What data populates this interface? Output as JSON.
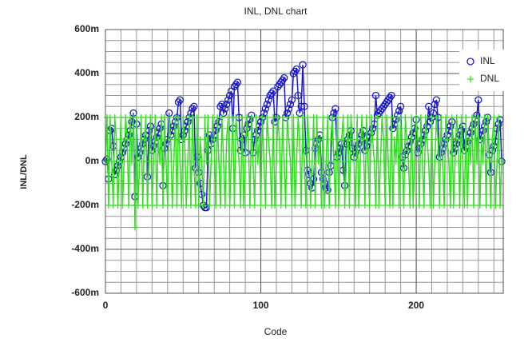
{
  "chart_data": {
    "type": "line",
    "title": "INL, DNL chart",
    "x_label": "Code",
    "y_label": "INL/DNL",
    "x": [
      0,
      1,
      2,
      3,
      4,
      5,
      6,
      7,
      8,
      9,
      10,
      11,
      12,
      13,
      14,
      15,
      16,
      17,
      18,
      19,
      20,
      21,
      22,
      23,
      24,
      25,
      26,
      27,
      28,
      29,
      30,
      31,
      32,
      33,
      34,
      35,
      36,
      37,
      38,
      39,
      40,
      41,
      42,
      43,
      44,
      45,
      46,
      47,
      48,
      49,
      50,
      51,
      52,
      53,
      54,
      55,
      56,
      57,
      58,
      59,
      60,
      61,
      62,
      63,
      64,
      65,
      66,
      67,
      68,
      69,
      70,
      71,
      72,
      73,
      74,
      75,
      76,
      77,
      78,
      79,
      80,
      81,
      82,
      83,
      84,
      85,
      86,
      87,
      88,
      89,
      90,
      91,
      92,
      93,
      94,
      95,
      96,
      97,
      98,
      99,
      100,
      101,
      102,
      103,
      104,
      105,
      106,
      107,
      108,
      109,
      110,
      111,
      112,
      113,
      114,
      115,
      116,
      117,
      118,
      119,
      120,
      121,
      122,
      123,
      124,
      125,
      126,
      127,
      128,
      129,
      130,
      131,
      132,
      133,
      134,
      135,
      136,
      137,
      138,
      139,
      140,
      141,
      142,
      143,
      144,
      145,
      146,
      147,
      148,
      149,
      150,
      151,
      152,
      153,
      154,
      155,
      156,
      157,
      158,
      159,
      160,
      161,
      162,
      163,
      164,
      165,
      166,
      167,
      168,
      169,
      170,
      171,
      172,
      173,
      174,
      175,
      176,
      177,
      178,
      179,
      180,
      181,
      182,
      183,
      184,
      185,
      186,
      187,
      188,
      189,
      190,
      191,
      192,
      193,
      194,
      195,
      196,
      197,
      198,
      199,
      200,
      201,
      202,
      203,
      204,
      205,
      206,
      207,
      208,
      209,
      210,
      211,
      212,
      213,
      214,
      215,
      216,
      217,
      218,
      219,
      220,
      221,
      222,
      223,
      224,
      225,
      226,
      227,
      228,
      229,
      230,
      231,
      232,
      233,
      234,
      235,
      236,
      237,
      238,
      239,
      240,
      241,
      242,
      243,
      244,
      245,
      246,
      247,
      248,
      249,
      250,
      251,
      252,
      253,
      254,
      255
    ],
    "series": [
      {
        "name": "INL",
        "color": "#1a1acc",
        "marker": "circle",
        "values": [
          0,
          0.01,
          -0.08,
          0.14,
          0.15,
          0.07,
          -0.06,
          -0.04,
          -0.02,
          0,
          0.02,
          0.04,
          0.06,
          0.08,
          0.1,
          0.12,
          0.14,
          0.18,
          0.22,
          -0.16,
          0.17,
          0.02,
          0.04,
          0.06,
          0.08,
          0.1,
          0.12,
          -0.07,
          0.14,
          0.16,
          0.05,
          0.07,
          0.09,
          0.11,
          0.13,
          0.15,
          0.17,
          -0.11,
          0.06,
          0.08,
          0.1,
          0.22,
          0.12,
          0.14,
          0.16,
          0.18,
          0.2,
          0.27,
          0.28,
          0.1,
          0.12,
          0.14,
          0.16,
          0.18,
          0.2,
          0.22,
          0.24,
          0.25,
          -0.03,
          0.02,
          -0.05,
          -0.1,
          -0.15,
          -0.2,
          -0.21,
          -0.21,
          0.05,
          0.12,
          0.08,
          0.1,
          0.12,
          0.14,
          0.16,
          0.18,
          0.25,
          0.26,
          0.22,
          0.24,
          0.26,
          0.28,
          0.3,
          0.32,
          0.15,
          0.34,
          0.35,
          0.36,
          0.2,
          0.05,
          0.1,
          0.12,
          0.04,
          0.15,
          0.17,
          0.19,
          0.21,
          0.04,
          0.1,
          0.12,
          0.14,
          0.16,
          0.18,
          0.2,
          0.22,
          0.24,
          0.26,
          0.28,
          0.3,
          0.31,
          0.32,
          0.18,
          0.2,
          0.34,
          0.35,
          0.36,
          0.37,
          0.38,
          0.2,
          0.22,
          0.24,
          0.26,
          0.28,
          0.4,
          0.41,
          0.42,
          0.3,
          0.22,
          0.25,
          0.44,
          0.25,
          0.05,
          -0.04,
          -0.06,
          -0.1,
          -0.12,
          -0.08,
          0.06,
          0.08,
          0.1,
          0.12,
          -0.05,
          -0.08,
          -0.1,
          -0.12,
          -0.13,
          -0.05,
          -0.02,
          0.2,
          0.22,
          0.24,
          0.02,
          0.04,
          0.06,
          0.08,
          -0.04,
          -0.11,
          0.08,
          0.1,
          0.12,
          0.14,
          0.06,
          0.02,
          0.04,
          0.06,
          0.08,
          0.1,
          0.12,
          0.14,
          0.05,
          0.07,
          0.09,
          0.11,
          0.13,
          0.15,
          0.17,
          0.3,
          0.21,
          0.22,
          0.23,
          0.24,
          0.25,
          0.26,
          0.27,
          0.28,
          0.29,
          0.3,
          0.15,
          0.17,
          0.19,
          0.21,
          0.23,
          0.25,
          0.02,
          -0.03,
          0.03,
          0.05,
          0.07,
          0.09,
          0.11,
          0.13,
          0.15,
          0.19,
          0.04,
          0.06,
          0.08,
          0.1,
          0.12,
          0.14,
          0.16,
          0.25,
          0.18,
          0.2,
          0.22,
          0.26,
          0.28,
          0.2,
          0.02,
          0.04,
          0.06,
          0.08,
          0.1,
          0.12,
          0.14,
          0.16,
          0.18,
          0.04,
          0.06,
          0.08,
          0.1,
          0.12,
          0.14,
          0.16,
          0.05,
          0.07,
          0.09,
          0.11,
          0.13,
          0.15,
          0.17,
          0.19,
          0.21,
          0.28,
          0.1,
          0.12,
          0.14,
          0.16,
          0.18,
          0.2,
          0.03,
          -0.05,
          0.05,
          0.07,
          0.09,
          0.15,
          0.17,
          0.19,
          0
        ]
      },
      {
        "name": "DNL",
        "color": "#33dd22",
        "marker": "plus",
        "values": [
          0,
          0.2,
          -0.2,
          0.2,
          0,
          -0.2,
          0.2,
          0.1,
          -0.2,
          0,
          0.2,
          -0.2,
          0,
          0.2,
          0.1,
          -0.2,
          0.2,
          0,
          0.2,
          -0.3,
          0.2,
          -0.2,
          0,
          0.2,
          -0.2,
          0.1,
          0.2,
          -0.2,
          0,
          0.2,
          -0.2,
          0,
          0.2,
          -0.2,
          0.1,
          0,
          0.2,
          -0.2,
          0.2,
          0,
          -0.2,
          0.2,
          0.1,
          -0.2,
          0,
          0.2,
          -0.2,
          0.2,
          0,
          -0.2,
          0.2,
          0.1,
          -0.2,
          0,
          0.2,
          -0.2,
          0.2,
          0,
          -0.2,
          0.2,
          -0.2,
          0.1,
          0,
          -0.2,
          0.2,
          0,
          0.2,
          -0.2,
          0,
          0.2,
          0.1,
          -0.2,
          0.2,
          0,
          -0.2,
          0.2,
          0,
          -0.2,
          0.1,
          0.2,
          -0.2,
          0,
          0.2,
          -0.2,
          0.2,
          0.1,
          0,
          -0.2,
          0.2,
          -0.2,
          0,
          0.2,
          0.1,
          -0.2,
          0.2,
          0,
          -0.2,
          0.2,
          0,
          0.1,
          -0.2,
          0.2,
          0,
          -0.2,
          0.2,
          0.1,
          0,
          -0.2,
          0.2,
          -0.2,
          0,
          0.2,
          0.1,
          -0.2,
          0.2,
          0,
          -0.2,
          0.2,
          0.1,
          0,
          -0.2,
          0.2,
          -0.2,
          0,
          0.2,
          0.1,
          -0.2,
          0.2,
          0,
          -0.2,
          0.2,
          0.1,
          -0.2,
          0,
          0.2,
          -0.2,
          0.2,
          0,
          0.1,
          -0.2,
          0.2,
          -0.2,
          0,
          0.2,
          -0.2,
          0.1,
          0.2,
          0,
          -0.2,
          0.2,
          -0.2,
          0,
          0.1,
          0.2,
          -0.2,
          0,
          0.2,
          -0.2,
          0.2,
          0.1,
          0,
          -0.2,
          0.2,
          -0.2,
          0,
          0.2,
          0.1,
          -0.2,
          0.2,
          0,
          -0.2,
          0.2,
          0.1,
          0,
          -0.2,
          0.2,
          -0.2,
          0,
          0.2,
          0.1,
          -0.2,
          0.2,
          0,
          -0.2,
          0.2,
          -0.2,
          0.1,
          0,
          0.2,
          -0.2,
          0.2,
          0,
          -0.2,
          0.2,
          0.1,
          0,
          -0.2,
          0.2,
          -0.2,
          0,
          0.2,
          0.1,
          -0.2,
          0.2,
          0,
          -0.2,
          0.2,
          0.1,
          0,
          -0.2,
          0.2,
          -0.2,
          0,
          0.2,
          0.1,
          -0.2,
          0.2,
          0,
          -0.2,
          0.2,
          0.1,
          0,
          -0.2,
          0.2,
          -0.2,
          0,
          0.2,
          0.1,
          -0.2,
          0.2,
          0,
          -0.2,
          0.2,
          -0.2,
          0.1,
          0,
          0.2,
          -0.2,
          0.2,
          0,
          0.2,
          -0.2,
          0.1,
          0,
          0.2,
          -0.2,
          0.2,
          0,
          -0.2,
          0.1,
          0.2,
          -0.2,
          0,
          0.2,
          -0.2,
          0
        ]
      }
    ],
    "xlim": [
      0,
      256
    ],
    "xticks": [
      0,
      100,
      200
    ],
    "ylim": [
      -0.6,
      0.6
    ],
    "yticks": [
      {
        "value": -0.6,
        "label": "-600m"
      },
      {
        "value": -0.4,
        "label": "-400m"
      },
      {
        "value": -0.2,
        "label": "-200m"
      },
      {
        "value": 0,
        "label": "0m"
      },
      {
        "value": 0.2,
        "label": "200m"
      },
      {
        "value": 0.4,
        "label": "400m"
      },
      {
        "value": 0.6,
        "label": "600m"
      }
    ],
    "grid": true,
    "minor_grid": {
      "x_step": 10,
      "y_step": 0.05
    },
    "legend": "upper right"
  }
}
